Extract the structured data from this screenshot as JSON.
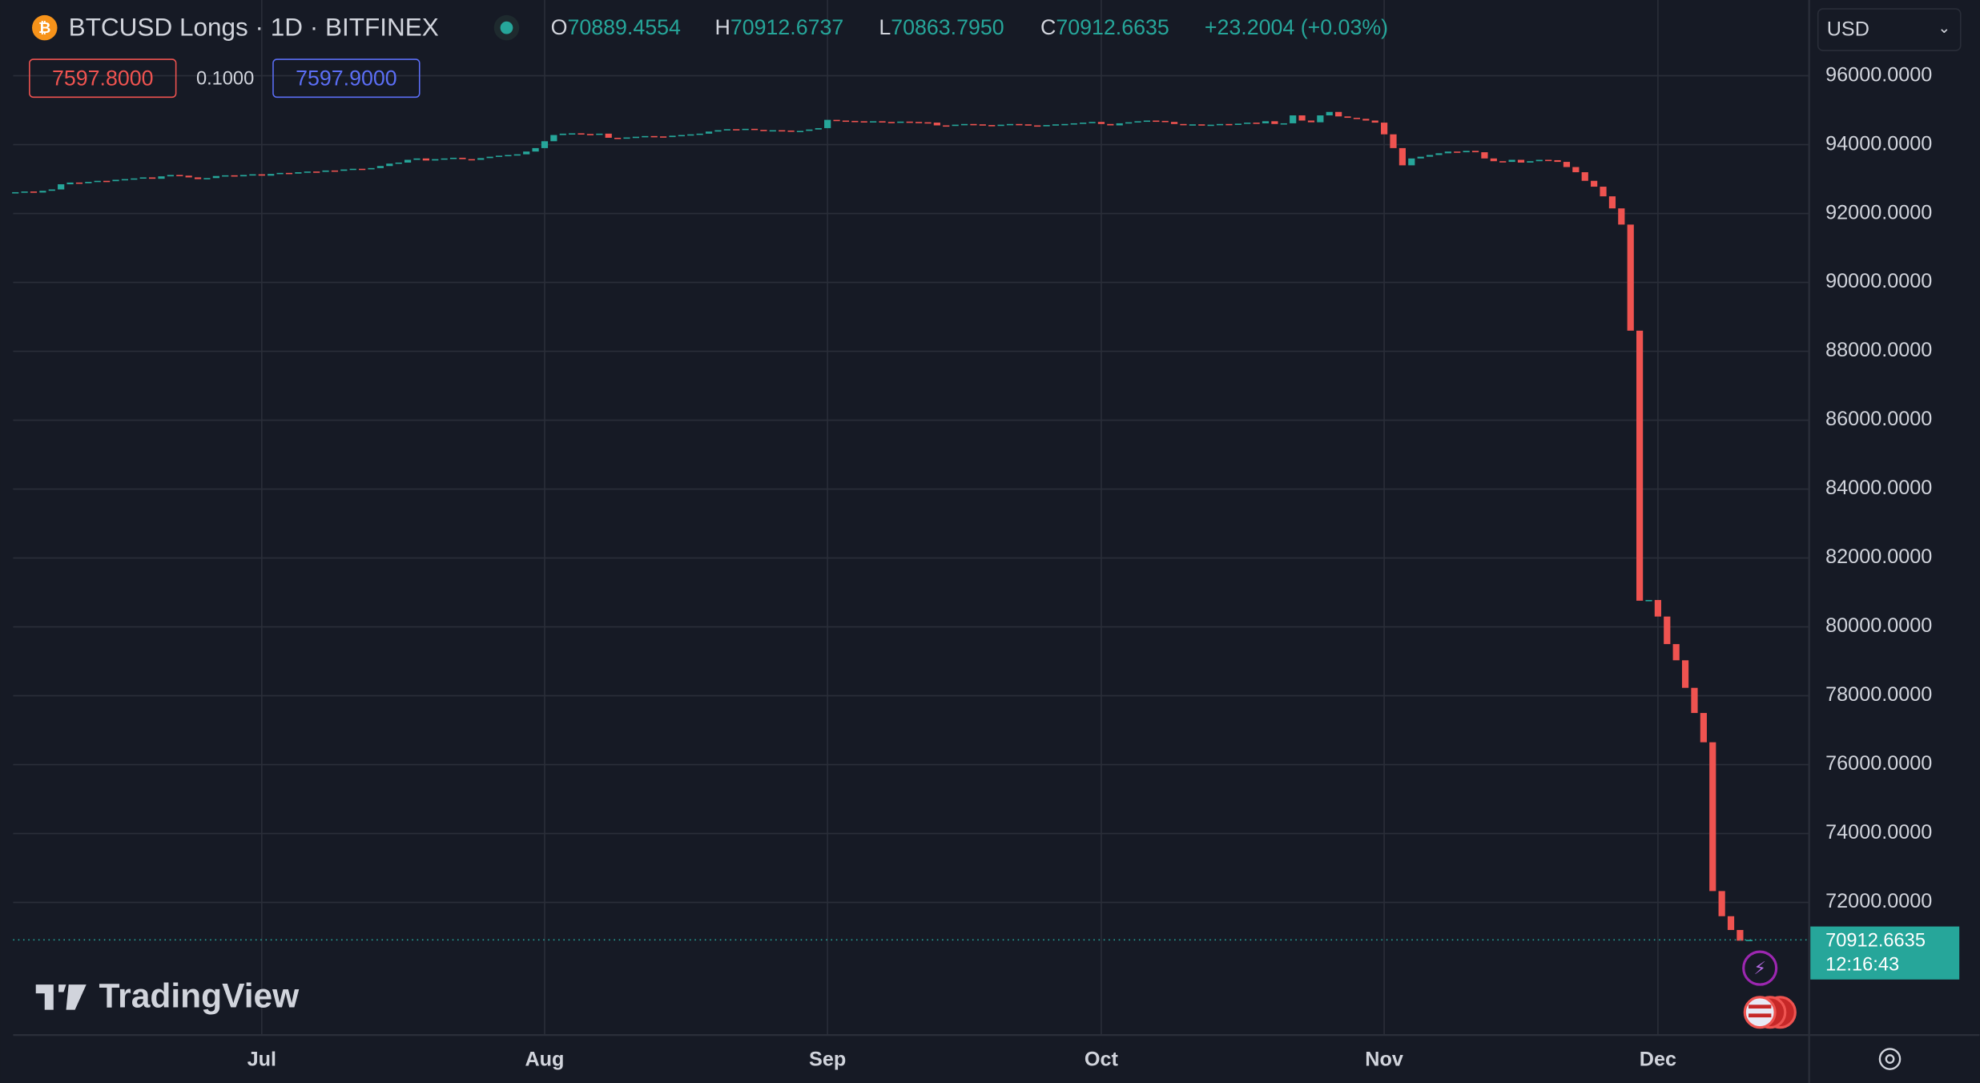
{
  "chart_data": {
    "type": "candlestick",
    "title": "BTCUSD Longs · 1D · BITFINEX",
    "ohlc_legend": {
      "o_label": "O",
      "o": "70889.4554",
      "h_label": "H",
      "h": "70912.6737",
      "l_label": "L",
      "l": "70863.7950",
      "c_label": "C",
      "c": "70912.6635",
      "change": "+23.2004 (+0.03%)"
    },
    "order_boxes": {
      "sell": "7597.8000",
      "spread": "0.1000",
      "buy": "7597.9000"
    },
    "currency": "USD",
    "last_price_label": "70912.6635",
    "countdown": "12:16:43",
    "watermark": "TradingView",
    "up_color": "#26a69a",
    "down_color": "#ef5350",
    "grid": true,
    "ylim": [
      68150,
      98200
    ],
    "yticks": [
      {
        "value": 72000,
        "label": "72000.0000"
      },
      {
        "value": 74000,
        "label": "74000.0000"
      },
      {
        "value": 76000,
        "label": "76000.0000"
      },
      {
        "value": 78000,
        "label": "78000.0000"
      },
      {
        "value": 80000,
        "label": "80000.0000"
      },
      {
        "value": 82000,
        "label": "82000.0000"
      },
      {
        "value": 84000,
        "label": "84000.0000"
      },
      {
        "value": 86000,
        "label": "86000.0000"
      },
      {
        "value": 88000,
        "label": "88000.0000"
      },
      {
        "value": 90000,
        "label": "90000.0000"
      },
      {
        "value": 92000,
        "label": "92000.0000"
      },
      {
        "value": 94000,
        "label": "94000.0000"
      },
      {
        "value": 96000,
        "label": "96000.0000"
      }
    ],
    "xticks": [
      {
        "value": 27,
        "label": "Jul"
      },
      {
        "value": 58,
        "label": "Aug"
      },
      {
        "value": 89,
        "label": "Sep"
      },
      {
        "value": 119,
        "label": "Oct"
      },
      {
        "value": 150,
        "label": "Nov"
      },
      {
        "value": 180,
        "label": "Dec"
      }
    ],
    "open": [
      92600,
      92620,
      92640,
      92610,
      92660,
      92700,
      92850,
      92900,
      92880,
      92920,
      92950,
      92940,
      92980,
      93000,
      93020,
      93050,
      93010,
      93080,
      93120,
      93100,
      93050,
      93000,
      93030,
      93090,
      93110,
      93080,
      93120,
      93140,
      93100,
      93150,
      93180,
      93160,
      93200,
      93220,
      93210,
      93250,
      93240,
      93280,
      93300,
      93290,
      93320,
      93380,
      93450,
      93480,
      93560,
      93600,
      93540,
      93580,
      93600,
      93620,
      93580,
      93560,
      93610,
      93650,
      93680,
      93700,
      93720,
      93800,
      93900,
      94100,
      94280,
      94320,
      94330,
      94310,
      94300,
      94320,
      94200,
      94180,
      94210,
      94230,
      94250,
      94240,
      94220,
      94260,
      94280,
      94300,
      94320,
      94380,
      94420,
      94450,
      94440,
      94460,
      94430,
      94400,
      94420,
      94410,
      94380,
      94400,
      94440,
      94480,
      94720,
      94700,
      94690,
      94680,
      94670,
      94680,
      94660,
      94650,
      94670,
      94660,
      94650,
      94640,
      94560,
      94550,
      94580,
      94600,
      94590,
      94570,
      94560,
      94580,
      94600,
      94590,
      94560,
      94540,
      94570,
      94590,
      94600,
      94620,
      94640,
      94660,
      94600,
      94560,
      94620,
      94650,
      94680,
      94700,
      94690,
      94660,
      94600,
      94580,
      94590,
      94560,
      94580,
      94600,
      94590,
      94610,
      94640,
      94620,
      94680,
      94600,
      94620,
      94850,
      94700,
      94650,
      94850,
      94950,
      94820,
      94780,
      94750,
      94700,
      94640,
      94300,
      93900,
      93400,
      93600,
      93650,
      93700,
      93750,
      93800,
      93780,
      93820,
      93780,
      93600,
      93520,
      93500,
      93560,
      93480,
      93520,
      93560,
      93550,
      93500,
      93350,
      93200,
      92950,
      92780,
      92500,
      92150,
      91680,
      88600,
      80760,
      80780,
      80300,
      79500,
      79030,
      78230,
      77500,
      76650,
      72330,
      71600,
      71200,
      70889.4554
    ],
    "close": [
      92620,
      92640,
      92610,
      92660,
      92700,
      92850,
      92900,
      92880,
      92920,
      92950,
      92940,
      92980,
      93000,
      93020,
      93050,
      93010,
      93080,
      93120,
      93100,
      93050,
      93000,
      93030,
      93090,
      93110,
      93080,
      93120,
      93140,
      93100,
      93150,
      93180,
      93160,
      93200,
      93220,
      93210,
      93250,
      93240,
      93280,
      93300,
      93290,
      93320,
      93380,
      93450,
      93480,
      93560,
      93600,
      93540,
      93580,
      93600,
      93620,
      93580,
      93560,
      93610,
      93650,
      93680,
      93700,
      93720,
      93800,
      93900,
      94100,
      94280,
      94320,
      94330,
      94310,
      94300,
      94320,
      94200,
      94180,
      94210,
      94230,
      94250,
      94240,
      94220,
      94260,
      94280,
      94300,
      94320,
      94380,
      94420,
      94450,
      94440,
      94460,
      94430,
      94400,
      94420,
      94410,
      94380,
      94400,
      94440,
      94480,
      94720,
      94700,
      94690,
      94680,
      94670,
      94680,
      94660,
      94650,
      94670,
      94660,
      94650,
      94640,
      94560,
      94550,
      94580,
      94600,
      94590,
      94570,
      94560,
      94580,
      94600,
      94590,
      94560,
      94540,
      94570,
      94590,
      94600,
      94620,
      94640,
      94660,
      94600,
      94560,
      94620,
      94650,
      94680,
      94700,
      94690,
      94660,
      94600,
      94580,
      94590,
      94560,
      94580,
      94600,
      94590,
      94610,
      94640,
      94620,
      94680,
      94600,
      94620,
      94850,
      94700,
      94650,
      94850,
      94950,
      94820,
      94780,
      94750,
      94700,
      94640,
      94300,
      93900,
      93400,
      93600,
      93650,
      93700,
      93750,
      93800,
      93780,
      93820,
      93780,
      93600,
      93520,
      93500,
      93560,
      93480,
      93520,
      93560,
      93550,
      93500,
      93350,
      93200,
      92950,
      92780,
      92500,
      92150,
      91680,
      88600,
      80760,
      80780,
      80300,
      79500,
      79030,
      78230,
      77500,
      76650,
      72330,
      71600,
      71200,
      70889.4554,
      70912.6635
    ]
  }
}
